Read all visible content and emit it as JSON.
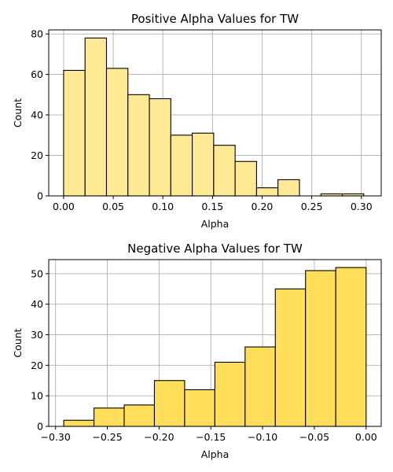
{
  "chart_data": [
    {
      "type": "bar",
      "title": "Positive Alpha Values for TW",
      "xlabel": "Alpha",
      "ylabel": "Count",
      "bar_color": "#ffe994",
      "edge_color": "#000000",
      "grid": true,
      "xlim": [
        -0.015,
        0.32
      ],
      "ylim": [
        0,
        82
      ],
      "xticks": [
        "0.00",
        "0.05",
        "0.10",
        "0.15",
        "0.20",
        "0.25",
        "0.30"
      ],
      "yticks": [
        "0",
        "20",
        "40",
        "60",
        "80"
      ],
      "bins": [
        {
          "x0": 0.0,
          "x1": 0.0216,
          "value": 62
        },
        {
          "x0": 0.0216,
          "x1": 0.0432,
          "value": 78
        },
        {
          "x0": 0.0432,
          "x1": 0.0648,
          "value": 63
        },
        {
          "x0": 0.0648,
          "x1": 0.0864,
          "value": 50
        },
        {
          "x0": 0.0864,
          "x1": 0.108,
          "value": 48
        },
        {
          "x0": 0.108,
          "x1": 0.1296,
          "value": 30
        },
        {
          "x0": 0.1296,
          "x1": 0.1512,
          "value": 31
        },
        {
          "x0": 0.1512,
          "x1": 0.1728,
          "value": 25
        },
        {
          "x0": 0.1728,
          "x1": 0.1944,
          "value": 17
        },
        {
          "x0": 0.1944,
          "x1": 0.216,
          "value": 4
        },
        {
          "x0": 0.216,
          "x1": 0.2376,
          "value": 8
        },
        {
          "x0": 0.2376,
          "x1": 0.2592,
          "value": 0
        },
        {
          "x0": 0.2592,
          "x1": 0.2808,
          "value": 1
        },
        {
          "x0": 0.2808,
          "x1": 0.3024,
          "value": 1
        }
      ]
    },
    {
      "type": "bar",
      "title": "Negative Alpha Values for TW",
      "xlabel": "Alpha",
      "ylabel": "Count",
      "bar_color": "#ffde59",
      "edge_color": "#000000",
      "grid": true,
      "xlim": [
        -0.3066,
        0.0146
      ],
      "ylim": [
        0,
        54.6
      ],
      "xticks": [
        "−0.30",
        "−0.25",
        "−0.20",
        "−0.15",
        "−0.10",
        "−0.05",
        "0.00"
      ],
      "yticks": [
        "0",
        "10",
        "20",
        "30",
        "40",
        "50"
      ],
      "bins": [
        {
          "x0": -0.2921,
          "x1": -0.2629,
          "value": 2
        },
        {
          "x0": -0.2629,
          "x1": -0.2337,
          "value": 6
        },
        {
          "x0": -0.2337,
          "x1": -0.2045,
          "value": 7
        },
        {
          "x0": -0.2045,
          "x1": -0.1753,
          "value": 15
        },
        {
          "x0": -0.1753,
          "x1": -0.1461,
          "value": 12
        },
        {
          "x0": -0.1461,
          "x1": -0.1169,
          "value": 21
        },
        {
          "x0": -0.1169,
          "x1": -0.0877,
          "value": 26
        },
        {
          "x0": -0.0877,
          "x1": -0.0585,
          "value": 45
        },
        {
          "x0": -0.0585,
          "x1": -0.0293,
          "value": 51
        },
        {
          "x0": -0.0293,
          "x1": 0.0,
          "value": 52
        }
      ]
    }
  ]
}
